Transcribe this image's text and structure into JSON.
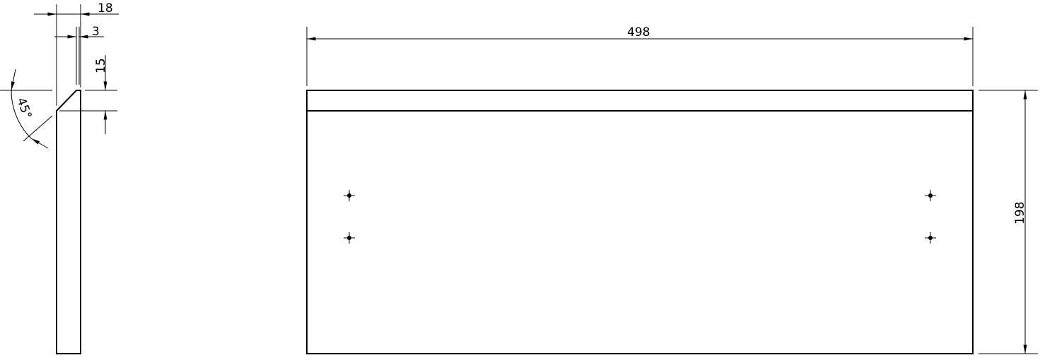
{
  "side_view": {
    "dim_thickness": "18",
    "dim_groove": "3",
    "dim_chamfer_height": "15",
    "dim_angle": "45°"
  },
  "front_view": {
    "dim_width": "498",
    "dim_height": "198",
    "hole_count": 4
  }
}
